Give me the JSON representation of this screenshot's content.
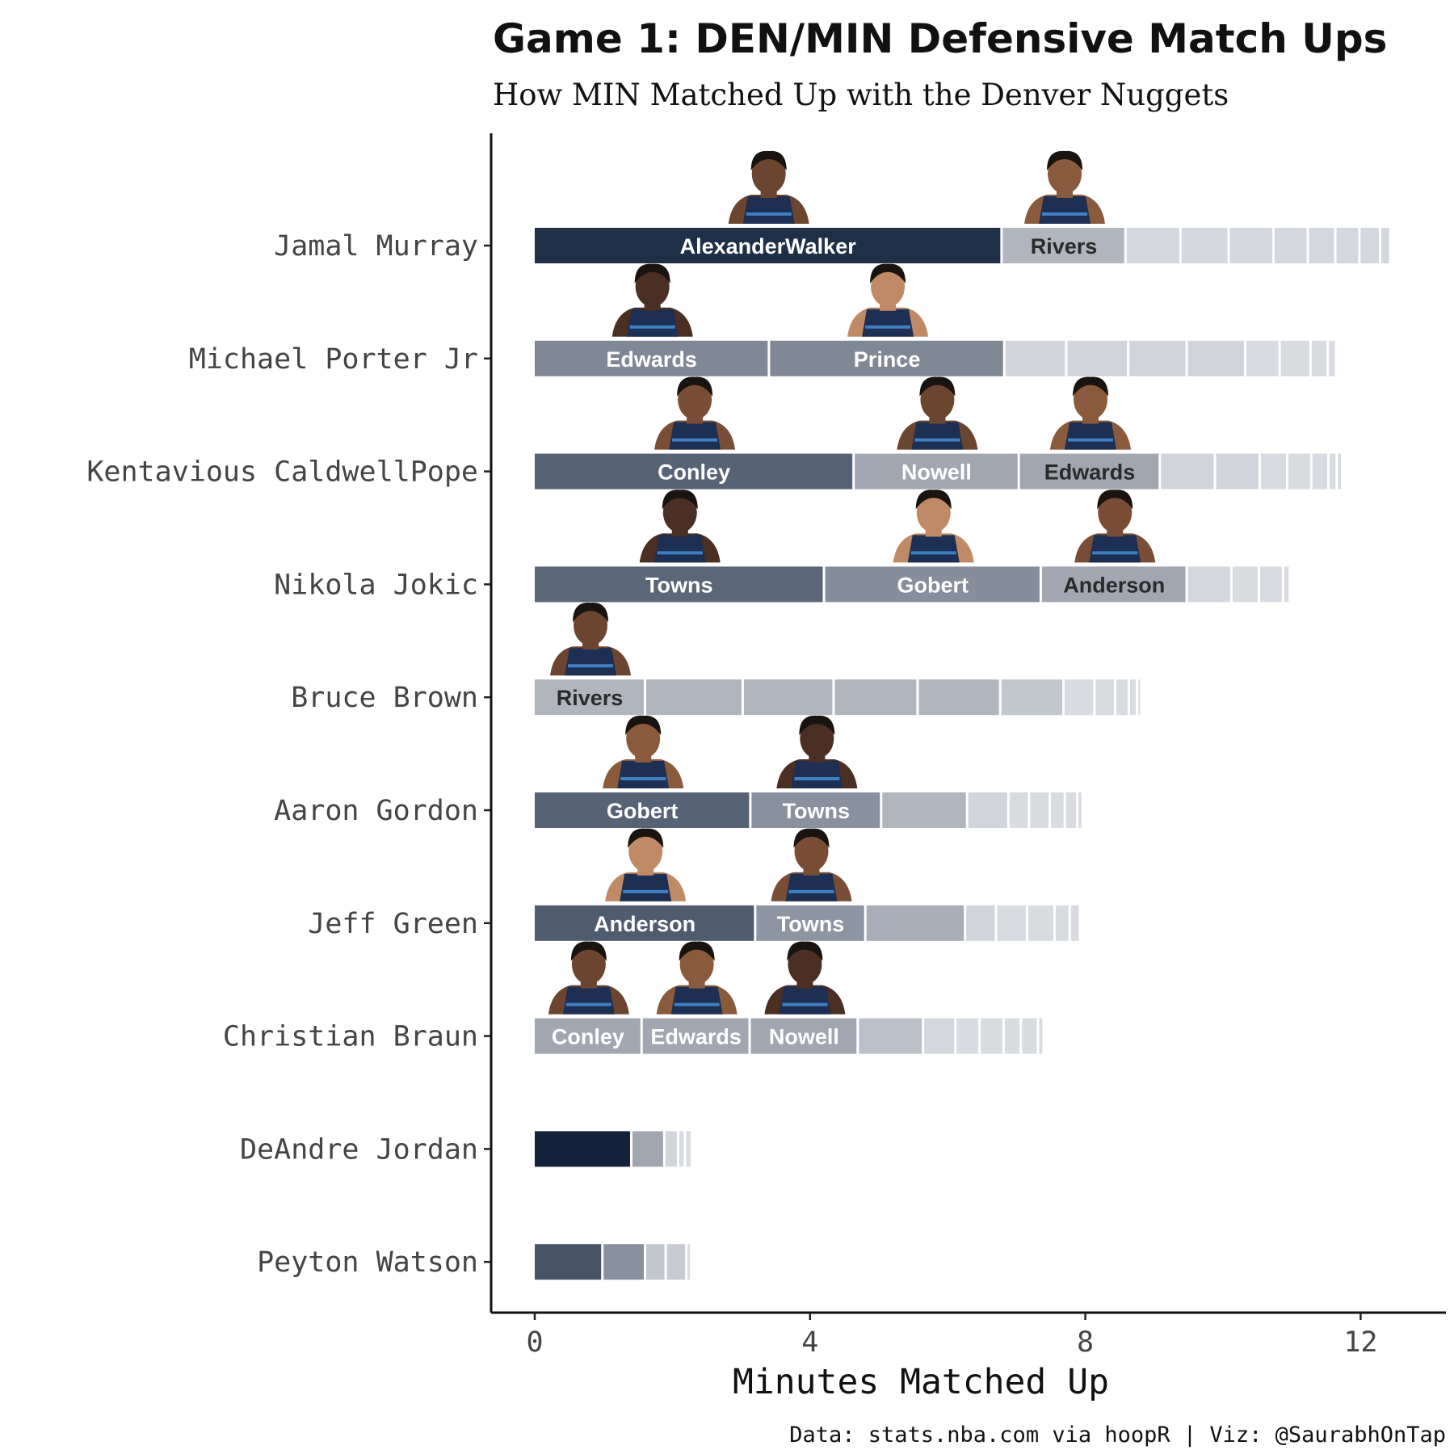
{
  "chart_data": {
    "type": "bar",
    "orientation": "horizontal",
    "stacked": true,
    "title": "Game 1: DEN/MIN Defensive Match Ups",
    "subtitle": "How MIN Matched Up with the Denver Nuggets",
    "xlabel": "Minutes Matched Up",
    "ylabel": "",
    "xlim": [
      -0.6,
      13.2
    ],
    "xticks": [
      "0",
      "4",
      "8",
      "12"
    ],
    "grid": false,
    "legend": "none",
    "caption": "Data: stats.nba.com via hoopR | Viz: @SaurabhOnTap",
    "rows": [
      {
        "player": "Jamal Murray",
        "segments": [
          {
            "label": "AlexanderWalker",
            "minutes": 6.8,
            "color": "#1e3048",
            "text_color": "#ffffff",
            "headshot": true
          },
          {
            "label": "Rivers",
            "minutes": 1.8,
            "color": "#b1b5be",
            "text_color": "#2a2a2a",
            "headshot": true
          },
          {
            "label": "",
            "minutes": 0.8,
            "color": "#d4d7dd"
          },
          {
            "label": "",
            "minutes": 0.7,
            "color": "#d4d7dd"
          },
          {
            "label": "",
            "minutes": 0.65,
            "color": "#d4d7dd"
          },
          {
            "label": "",
            "minutes": 0.5,
            "color": "#d4d7dd"
          },
          {
            "label": "",
            "minutes": 0.4,
            "color": "#d4d7dd"
          },
          {
            "label": "",
            "minutes": 0.35,
            "color": "#d4d7dd"
          },
          {
            "label": "",
            "minutes": 0.3,
            "color": "#d4d7dd"
          },
          {
            "label": "",
            "minutes": 0.15,
            "color": "#d4d7dd"
          }
        ]
      },
      {
        "player": "Michael Porter Jr",
        "segments": [
          {
            "label": "Edwards",
            "minutes": 3.42,
            "color": "#808896",
            "text_color": "#ffffff",
            "headshot": true
          },
          {
            "label": "Prince",
            "minutes": 3.42,
            "color": "#808896",
            "text_color": "#ffffff",
            "headshot": true
          },
          {
            "label": "",
            "minutes": 0.9,
            "color": "#d1d4da"
          },
          {
            "label": "",
            "minutes": 0.9,
            "color": "#d1d4da"
          },
          {
            "label": "",
            "minutes": 0.85,
            "color": "#d1d4da"
          },
          {
            "label": "",
            "minutes": 0.85,
            "color": "#d1d4da"
          },
          {
            "label": "",
            "minutes": 0.5,
            "color": "#d8dbe0"
          },
          {
            "label": "",
            "minutes": 0.45,
            "color": "#d8dbe0"
          },
          {
            "label": "",
            "minutes": 0.25,
            "color": "#d8dbe0"
          },
          {
            "label": "",
            "minutes": 0.12,
            "color": "#d8dbe0"
          }
        ]
      },
      {
        "player": "Kentavious CaldwellPope",
        "segments": [
          {
            "label": "Conley",
            "minutes": 4.65,
            "color": "#566275",
            "text_color": "#ffffff",
            "headshot": true
          },
          {
            "label": "Nowell",
            "minutes": 2.4,
            "color": "#a1a6b0",
            "text_color": "#ffffff",
            "headshot": true
          },
          {
            "label": "Edwards",
            "minutes": 2.05,
            "color": "#a1a6b0",
            "text_color": "#2a2a2a",
            "headshot": true
          },
          {
            "label": "",
            "minutes": 0.8,
            "color": "#d1d4da"
          },
          {
            "label": "",
            "minutes": 0.65,
            "color": "#d1d4da"
          },
          {
            "label": "",
            "minutes": 0.4,
            "color": "#d8dbe0"
          },
          {
            "label": "",
            "minutes": 0.35,
            "color": "#d8dbe0"
          },
          {
            "label": "",
            "minutes": 0.25,
            "color": "#d8dbe0"
          },
          {
            "label": "",
            "minutes": 0.12,
            "color": "#d8dbe0"
          },
          {
            "label": "",
            "minutes": 0.08,
            "color": "#d8dbe0"
          }
        ]
      },
      {
        "player": "Nikola Jokic",
        "segments": [
          {
            "label": "Towns",
            "minutes": 4.22,
            "color": "#5b6779",
            "text_color": "#ffffff",
            "headshot": true
          },
          {
            "label": "Gobert",
            "minutes": 3.15,
            "color": "#868e9b",
            "text_color": "#ffffff",
            "headshot": true
          },
          {
            "label": "Anderson",
            "minutes": 2.12,
            "color": "#a1a6b0",
            "text_color": "#2a2a2a",
            "headshot": true
          },
          {
            "label": "",
            "minutes": 0.65,
            "color": "#d4d7dd"
          },
          {
            "label": "",
            "minutes": 0.4,
            "color": "#d8dbe0"
          },
          {
            "label": "",
            "minutes": 0.35,
            "color": "#d8dbe0"
          },
          {
            "label": "",
            "minutes": 0.1,
            "color": "#d8dbe0"
          }
        ]
      },
      {
        "player": "Bruce Brown",
        "segments": [
          {
            "label": "Rivers",
            "minutes": 1.62,
            "color": "#b1b5be",
            "text_color": "#2a2a2a",
            "headshot": true
          },
          {
            "label": "",
            "minutes": 1.42,
            "color": "#b1b5be"
          },
          {
            "label": "",
            "minutes": 1.32,
            "color": "#b1b5be"
          },
          {
            "label": "",
            "minutes": 1.22,
            "color": "#b1b5be"
          },
          {
            "label": "",
            "minutes": 1.2,
            "color": "#b1b5be"
          },
          {
            "label": "",
            "minutes": 0.92,
            "color": "#c2c6cd"
          },
          {
            "label": "",
            "minutes": 0.45,
            "color": "#d8dbe0"
          },
          {
            "label": "",
            "minutes": 0.3,
            "color": "#d8dbe0"
          },
          {
            "label": "",
            "minutes": 0.2,
            "color": "#d8dbe0"
          },
          {
            "label": "",
            "minutes": 0.12,
            "color": "#d8dbe0"
          },
          {
            "label": "",
            "minutes": 0.06,
            "color": "#d8dbe0"
          }
        ]
      },
      {
        "player": "Aaron Gordon",
        "segments": [
          {
            "label": "Gobert",
            "minutes": 3.15,
            "color": "#566275",
            "text_color": "#ffffff",
            "headshot": true
          },
          {
            "label": "Towns",
            "minutes": 1.9,
            "color": "#8a919e",
            "text_color": "#ffffff",
            "headshot": true
          },
          {
            "label": "",
            "minutes": 1.25,
            "color": "#b1b5be"
          },
          {
            "label": "",
            "minutes": 0.6,
            "color": "#d1d4da"
          },
          {
            "label": "",
            "minutes": 0.3,
            "color": "#d8dbe0"
          },
          {
            "label": "",
            "minutes": 0.3,
            "color": "#d8dbe0"
          },
          {
            "label": "",
            "minutes": 0.22,
            "color": "#d8dbe0"
          },
          {
            "label": "",
            "minutes": 0.18,
            "color": "#d8dbe0"
          },
          {
            "label": "",
            "minutes": 0.08,
            "color": "#d8dbe0"
          }
        ]
      },
      {
        "player": "Jeff Green",
        "segments": [
          {
            "label": "Anderson",
            "minutes": 3.22,
            "color": "#4f5b6e",
            "text_color": "#ffffff",
            "headshot": true
          },
          {
            "label": "Towns",
            "minutes": 1.6,
            "color": "#8d95a2",
            "text_color": "#ffffff",
            "headshot": true
          },
          {
            "label": "",
            "minutes": 1.45,
            "color": "#a8adb7"
          },
          {
            "label": "",
            "minutes": 0.45,
            "color": "#d1d4da"
          },
          {
            "label": "",
            "minutes": 0.45,
            "color": "#d8dbe0"
          },
          {
            "label": "",
            "minutes": 0.4,
            "color": "#d8dbe0"
          },
          {
            "label": "",
            "minutes": 0.22,
            "color": "#d8dbe0"
          },
          {
            "label": "",
            "minutes": 0.15,
            "color": "#d8dbe0"
          }
        ]
      },
      {
        "player": "Christian Braun",
        "segments": [
          {
            "label": "Conley",
            "minutes": 1.57,
            "color": "#a1a6b0",
            "text_color": "#ffffff",
            "headshot": true
          },
          {
            "label": "Edwards",
            "minutes": 1.57,
            "color": "#a1a6b0",
            "text_color": "#ffffff",
            "headshot": true
          },
          {
            "label": "Nowell",
            "minutes": 1.57,
            "color": "#a1a6b0",
            "text_color": "#ffffff",
            "headshot": true
          },
          {
            "label": "",
            "minutes": 0.95,
            "color": "#bcc0c8"
          },
          {
            "label": "",
            "minutes": 0.47,
            "color": "#d4d7dd"
          },
          {
            "label": "",
            "minutes": 0.35,
            "color": "#d8dbe0"
          },
          {
            "label": "",
            "minutes": 0.35,
            "color": "#d8dbe0"
          },
          {
            "label": "",
            "minutes": 0.25,
            "color": "#d8dbe0"
          },
          {
            "label": "",
            "minutes": 0.25,
            "color": "#d8dbe0"
          },
          {
            "label": "",
            "minutes": 0.08,
            "color": "#d8dbe0"
          }
        ]
      },
      {
        "player": "DeAndre Jordan",
        "segments": [
          {
            "label": "",
            "minutes": 1.42,
            "color": "#13223b"
          },
          {
            "label": "",
            "minutes": 0.48,
            "color": "#a1a6b0"
          },
          {
            "label": "",
            "minutes": 0.2,
            "color": "#d1d4da"
          },
          {
            "label": "",
            "minutes": 0.1,
            "color": "#d8dbe0"
          },
          {
            "label": "",
            "minutes": 0.1,
            "color": "#d8dbe0"
          }
        ]
      },
      {
        "player": "Peyton Watson",
        "segments": [
          {
            "label": "",
            "minutes": 1.0,
            "color": "#475367"
          },
          {
            "label": "",
            "minutes": 0.62,
            "color": "#8a919e"
          },
          {
            "label": "",
            "minutes": 0.3,
            "color": "#c2c6cd"
          },
          {
            "label": "",
            "minutes": 0.3,
            "color": "#c8cbd2"
          },
          {
            "label": "",
            "minutes": 0.07,
            "color": "#d8dbe0"
          }
        ]
      }
    ]
  }
}
